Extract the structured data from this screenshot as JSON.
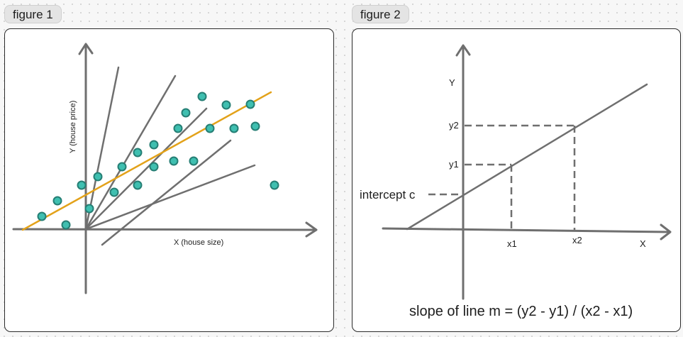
{
  "figure1": {
    "label": "figure 1",
    "x_axis_label": "X (house size)",
    "y_axis_label": "Y (house price)",
    "colors": {
      "points": "#3fbfb0",
      "fit_line": "#e3a21a",
      "lines": "#6f6f6f"
    }
  },
  "figure2": {
    "label": "figure 2",
    "x_axis_label": "X",
    "y_axis_label": "Y",
    "tick_x1": "x1",
    "tick_x2": "x2",
    "tick_y1": "y1",
    "tick_y2": "y2",
    "intercept_label": "intercept c",
    "slope_formula": "slope of line m = (y2 - y1) / (x2 - x1)"
  }
}
